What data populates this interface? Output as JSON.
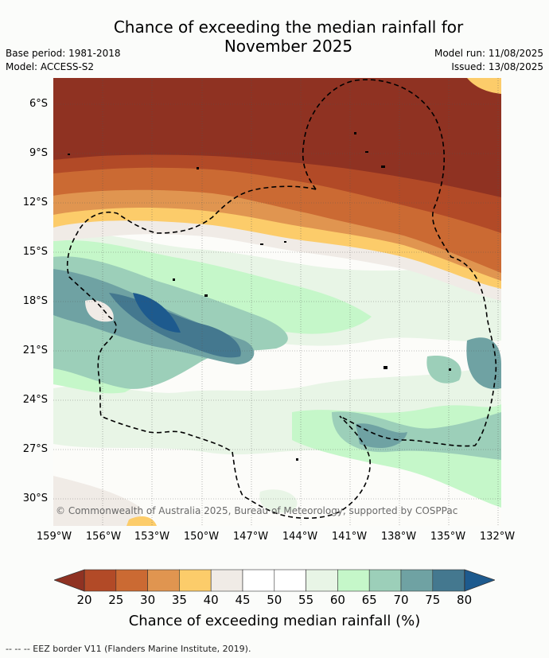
{
  "title_line1": "Chance of exceeding the median rainfall for",
  "title_line2": "November 2025",
  "base_period": "Base period: 1981-2018",
  "model": "Model: ACCESS-S2",
  "model_run": "Model run: 11/08/2025",
  "issued": "Issued: 13/08/2025",
  "copyright": "© Commonwealth of Australia 2025, Bureau of Meteorology, supported by COSPPac",
  "lat_ticks": [
    "6°S",
    "9°S",
    "12°S",
    "15°S",
    "18°S",
    "21°S",
    "24°S",
    "27°S",
    "30°S"
  ],
  "lon_ticks": [
    "159°W",
    "156°W",
    "153°W",
    "150°W",
    "147°W",
    "144°W",
    "141°W",
    "138°W",
    "135°W",
    "132°W"
  ],
  "colorbar": {
    "labels": [
      "20",
      "25",
      "30",
      "35",
      "40",
      "45",
      "50",
      "55",
      "60",
      "65",
      "70",
      "75",
      "80"
    ],
    "colors": [
      "#8f3222",
      "#b24a27",
      "#cb6a33",
      "#e09550",
      "#fccc6a",
      "#f0ebe6",
      "#ffffff",
      "#ffffff",
      "#e8f5e6",
      "#c5f7c9",
      "#9ccfb9",
      "#6fa2a3",
      "#44788f"
    ],
    "low_color": "#8f3222",
    "high_color": "#1d5a8e",
    "title": "Chance of exceeding median rainfall (%)"
  },
  "footnote": "--  --  -- EEZ border V11 (Flanders Marine Institute, 2019)."
}
